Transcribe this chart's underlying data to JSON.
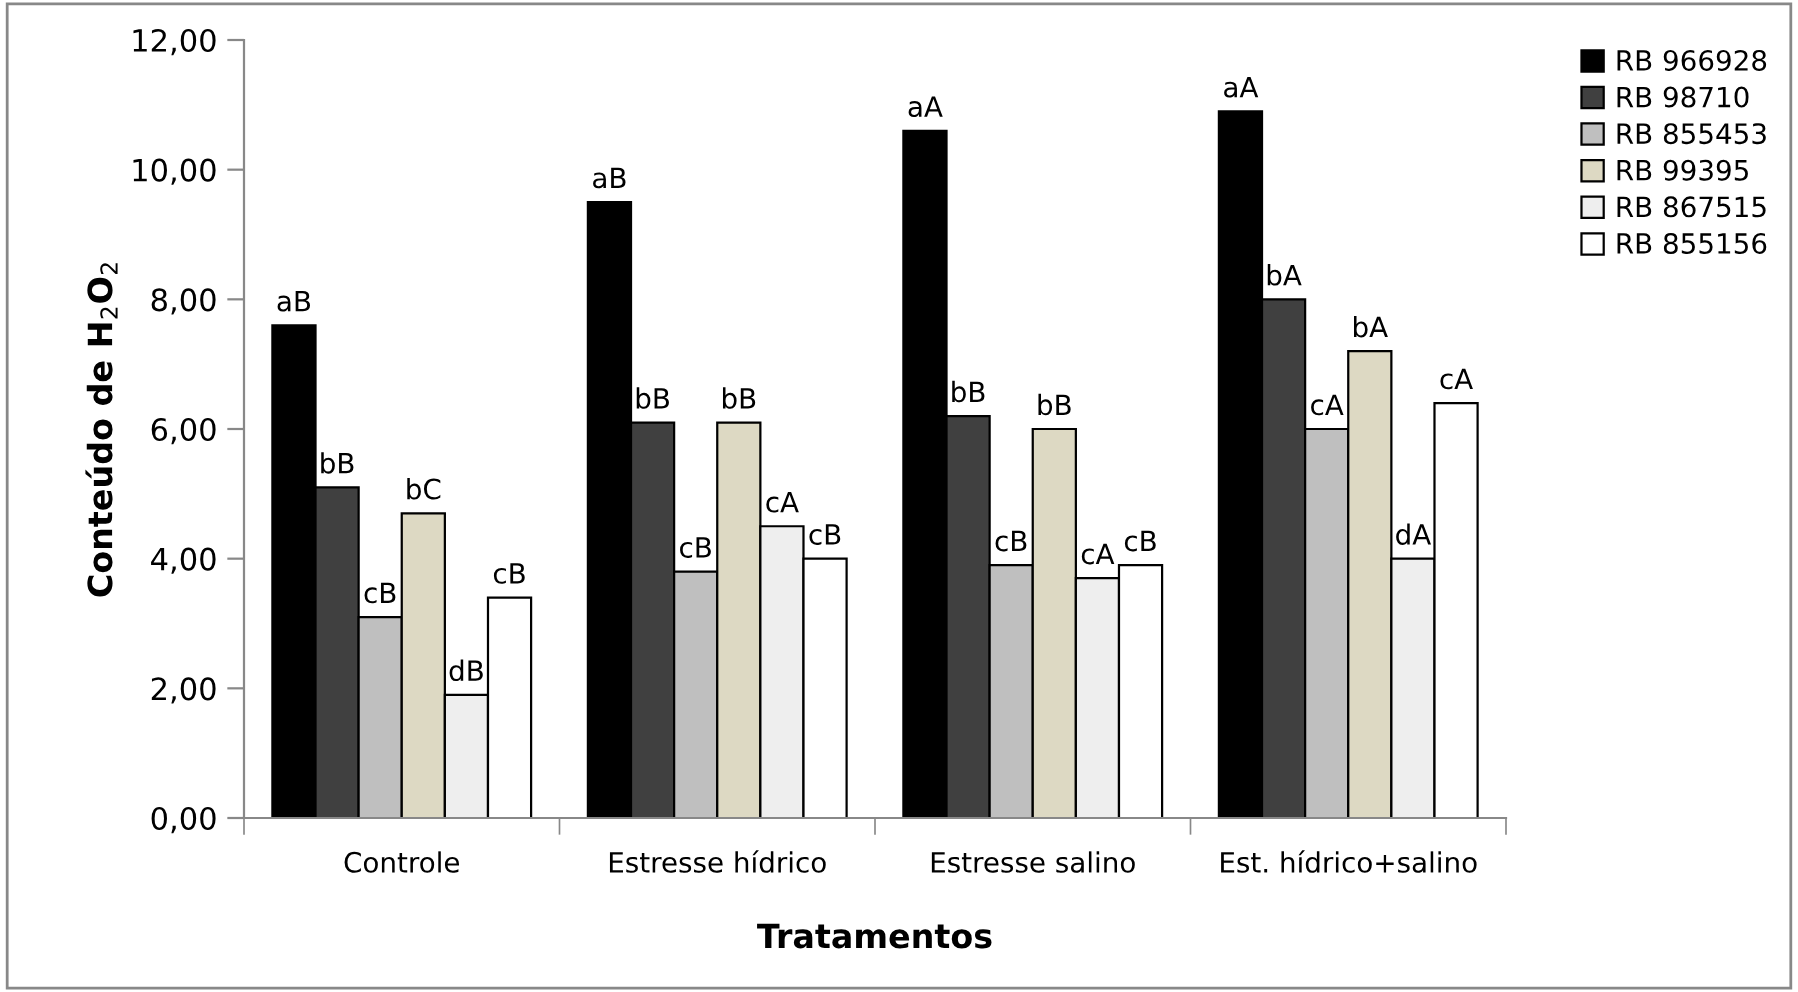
{
  "chart_data": {
    "type": "bar",
    "xlabel": "Tratamentos",
    "ylabel": "Conteúdo de H$_{2}$O$_{2}$",
    "categories": [
      "Controle",
      "Estresse hídrico",
      "Estresse salino",
      "Est. hídrico+salino"
    ],
    "series": [
      {
        "name": "RB 966928",
        "color": "#000000",
        "values": [
          7.6,
          9.5,
          10.6,
          10.9
        ],
        "value_labels": [
          "aB",
          "aB",
          "aA",
          "aA"
        ]
      },
      {
        "name": "RB 98710",
        "color": "#404040",
        "values": [
          5.1,
          6.1,
          6.2,
          8.0
        ],
        "value_labels": [
          "bB",
          "bB",
          "bB",
          "bA"
        ]
      },
      {
        "name": "RB 855453",
        "color": "#bfbfbf",
        "values": [
          3.1,
          3.8,
          3.9,
          6.0
        ],
        "value_labels": [
          "cB",
          "cB",
          "cB",
          "cA"
        ]
      },
      {
        "name": "RB 99395",
        "color": "#ddd9c3",
        "values": [
          4.7,
          6.1,
          6.0,
          7.2
        ],
        "value_labels": [
          "bC",
          "bB",
          "bB",
          "bA"
        ]
      },
      {
        "name": "RB 867515",
        "color": "#eeeeee",
        "values": [
          1.9,
          4.5,
          3.7,
          4.0
        ],
        "value_labels": [
          "dB",
          "cA",
          "cA",
          "dA"
        ]
      },
      {
        "name": "RB 855156",
        "color": "#ffffff",
        "values": [
          3.4,
          4.0,
          3.9,
          6.4
        ],
        "value_labels": [
          "cB",
          "cB",
          "cB",
          "cA"
        ]
      }
    ],
    "ylim": [
      0,
      12
    ],
    "yticks": [
      {
        "value": 0,
        "label": "0,00"
      },
      {
        "value": 2,
        "label": "2,00"
      },
      {
        "value": 4,
        "label": "4,00"
      },
      {
        "value": 6,
        "label": "6,00"
      },
      {
        "value": 8,
        "label": "8,00"
      },
      {
        "value": 10,
        "label": "10,00"
      },
      {
        "value": 12,
        "label": "12,00"
      }
    ],
    "grid": false,
    "legend": "right"
  }
}
